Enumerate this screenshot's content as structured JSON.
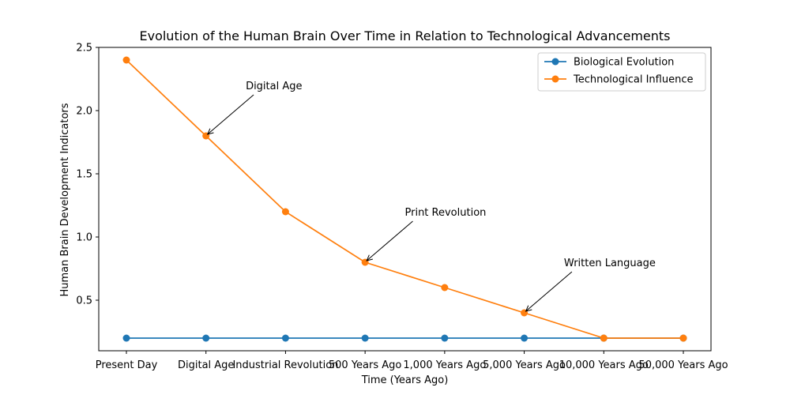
{
  "chart_data": {
    "type": "line",
    "title": "Evolution of the Human Brain Over Time in Relation to Technological Advancements",
    "xlabel": "Time (Years Ago)",
    "ylabel": "Human Brain Development Indicators",
    "categories": [
      "Present Day",
      "Digital Age",
      "Industrial Revolution",
      "500 Years Ago",
      "1,000 Years Ago",
      "5,000 Years Ago",
      "10,000 Years Ago",
      "50,000 Years Ago"
    ],
    "series": [
      {
        "name": "Biological Evolution",
        "color": "#1f77b4",
        "values": [
          0.2,
          0.2,
          0.2,
          0.2,
          0.2,
          0.2,
          0.2,
          0.2
        ]
      },
      {
        "name": "Technological Influence",
        "color": "#ff7f0e",
        "values": [
          2.4,
          1.8,
          1.2,
          0.8,
          0.6,
          0.4,
          0.2,
          0.2
        ]
      }
    ],
    "ylim": [
      0.1,
      2.5
    ],
    "yticks": [
      0.5,
      1.0,
      1.5,
      2.0,
      2.5
    ],
    "ytick_labels": [
      "0.5",
      "1.0",
      "1.5",
      "2.0",
      "2.5"
    ],
    "legend_position": "top-right",
    "grid": false,
    "annotations": [
      {
        "text": "Digital Age",
        "target_category": "Digital Age",
        "target_value": 1.8,
        "text_x_category_offset": 0.5,
        "text_value": 2.2
      },
      {
        "text": "Print Revolution",
        "target_category": "500 Years Ago",
        "target_value": 0.8,
        "text_x_category_offset": 0.5,
        "text_value": 1.2
      },
      {
        "text": "Written Language",
        "target_category": "5,000 Years Ago",
        "target_value": 0.4,
        "text_x_category_offset": 0.5,
        "text_value": 0.8
      }
    ]
  }
}
